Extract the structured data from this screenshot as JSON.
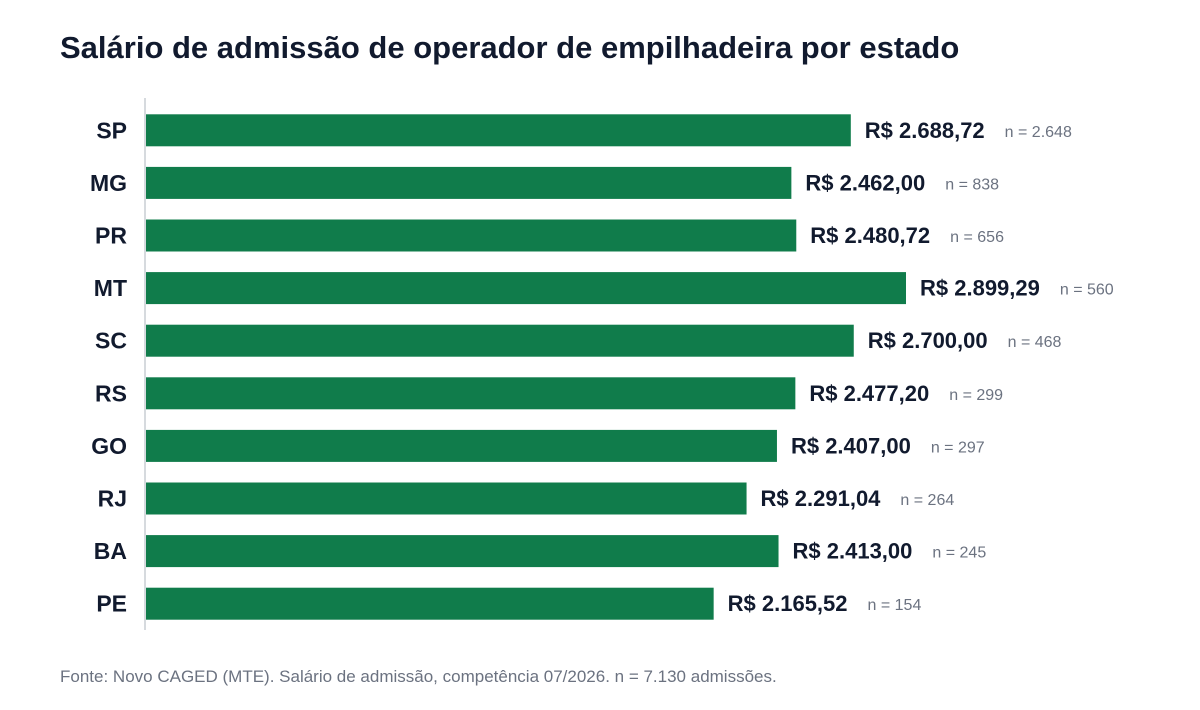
{
  "title": "Salário de admissão de operador de empilhadeira por estado",
  "source": "Fonte: Novo CAGED (MTE). Salário de admissão, competência 07/2026. n = 7.130 admissões.",
  "colors": {
    "bar": "#107c4b",
    "axis": "#c8cdd4",
    "text": "#111a2e",
    "muted": "#6b7280"
  },
  "chart_data": {
    "type": "bar",
    "orientation": "horizontal",
    "title": "Salário de admissão de operador de empilhadeira por estado",
    "categories": [
      "SP",
      "MG",
      "PR",
      "MT",
      "SC",
      "RS",
      "GO",
      "RJ",
      "BA",
      "PE"
    ],
    "values": [
      2688.72,
      2462.0,
      2480.72,
      2899.29,
      2700.0,
      2477.2,
      2407.0,
      2291.04,
      2413.0,
      2165.52
    ],
    "value_labels": [
      "R$ 2.688,72",
      "R$ 2.462,00",
      "R$ 2.480,72",
      "R$ 2.899,29",
      "R$ 2.700,00",
      "R$ 2.477,20",
      "R$ 2.407,00",
      "R$ 2.291,04",
      "R$ 2.413,00",
      "R$ 2.165,52"
    ],
    "n_labels": [
      "n = 2.648",
      "n = 838",
      "n = 656",
      "n = 560",
      "n = 468",
      "n = 299",
      "n = 297",
      "n = 264",
      "n = 245",
      "n = 154"
    ],
    "xlim": [
      0,
      3100
    ],
    "grid": false,
    "legend": "none"
  }
}
